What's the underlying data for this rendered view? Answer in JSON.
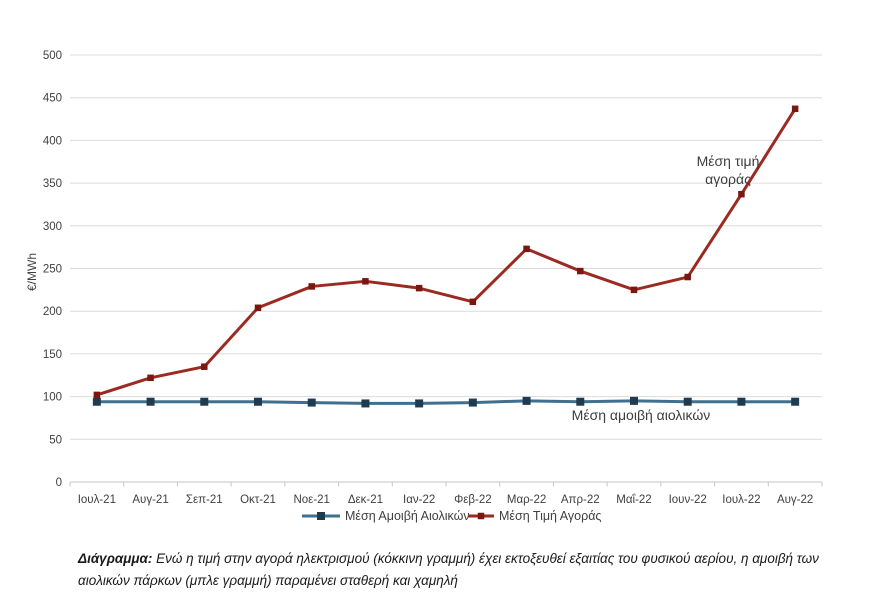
{
  "chart_data": {
    "type": "line",
    "categories": [
      "Ιουλ-21",
      "Αυγ-21",
      "Σεπ-21",
      "Οκτ-21",
      "Νοε-21",
      "Δεκ-21",
      "Ιαν-22",
      "Φεβ-22",
      "Μαρ-22",
      "Απρ-22",
      "Μαΐ-22",
      "Ιουν-22",
      "Ιουλ-22",
      "Αυγ-22"
    ],
    "series": [
      {
        "name": "Μέση Αμοιβή Αιολικών",
        "color": "#40708f",
        "marker_color": "#203b50",
        "marker_size": 8,
        "values": [
          94,
          94,
          94,
          94,
          93,
          92,
          92,
          93,
          95,
          94,
          95,
          94,
          94,
          94
        ]
      },
      {
        "name": "Μέση Τιμή Αγοράς",
        "color": "#9b2b22",
        "marker_color": "#7a1710",
        "marker_size": 6.5,
        "values": [
          102,
          122,
          135,
          204,
          229,
          235,
          227,
          211,
          273,
          247,
          225,
          240,
          337,
          437
        ]
      }
    ],
    "title": "",
    "xlabel": "",
    "ylabel": "€/MWh",
    "ylim": [
      0,
      500
    ],
    "ytick_step": 50,
    "grid": true,
    "legend_position": "bottom",
    "annotations": [
      {
        "id": "market-price-annotation",
        "lines": [
          "Μέση τιμή",
          "αγοράς"
        ],
        "x_category": 11.75,
        "y_value": 370
      },
      {
        "id": "wind-remuneration-annotation",
        "lines": [
          "Μέση αμοιβή αιολικών"
        ],
        "x_category": 10.13,
        "y_value": 72.5
      }
    ],
    "colors": {
      "gridline": "#dcdcdc",
      "axis_line": "#c6c6c6",
      "axis_text": "#404040",
      "annotation_text": "#3d3d3d"
    }
  },
  "caption": {
    "label": "Διάγραμμα:",
    "text": "Ενώ η τιμή στην αγορά ηλεκτρισμού (κόκκινη γραμμή) έχει εκτοξευθεί εξαιτίας του φυσικού αερίου, η αμοιβή των αιολικών πάρκων (μπλε γραμμή) παραμένει σταθερή και χαμηλή"
  }
}
